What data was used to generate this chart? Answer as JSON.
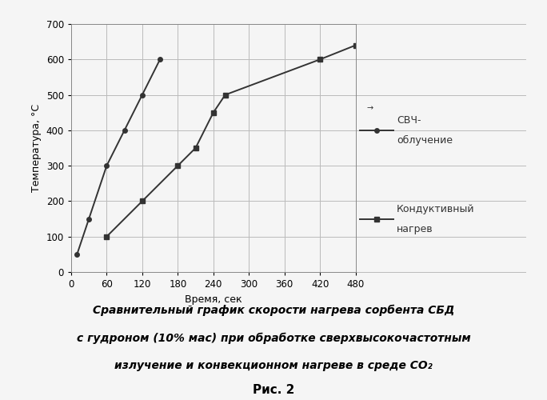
{
  "microwave_x": [
    10,
    30,
    60,
    90,
    120,
    150
  ],
  "microwave_y": [
    50,
    150,
    300,
    400,
    500,
    600
  ],
  "conductive_x": [
    60,
    120,
    180,
    210,
    240,
    260,
    420,
    480
  ],
  "conductive_y": [
    100,
    200,
    300,
    350,
    450,
    500,
    600,
    640
  ],
  "xlabel": "Время, сек",
  "ylabel": "Температура, °С",
  "xlim": [
    0,
    480
  ],
  "ylim": [
    0,
    700
  ],
  "xticks": [
    0,
    60,
    120,
    180,
    240,
    300,
    360,
    420,
    480
  ],
  "yticks": [
    0,
    100,
    200,
    300,
    400,
    500,
    600,
    700
  ],
  "legend_microwave": "СВЧ-\nоблучение",
  "legend_conductive": "Кондуктивный\nнагрев",
  "caption_line1": "Сравнительный график скорости нагрева сорбента СБД",
  "caption_line2": "с гудроном (10% мас) при обработке сверхвысокочастотным",
  "caption_line3": "излучение и конвекционном нагреве в среде СО₂",
  "fig_label": "Рис. 2",
  "line_color": "#333333",
  "bg_color": "#f5f5f5",
  "grid_color": "#bbbbbb"
}
